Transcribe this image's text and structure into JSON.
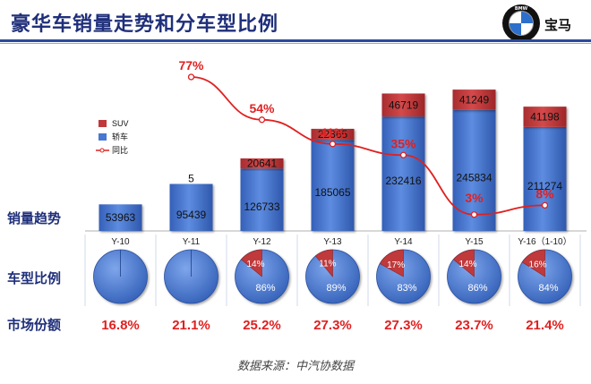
{
  "header": {
    "title": "豪华车销量走势和分车型比例",
    "brand_text": "宝马",
    "logo_text": "BMW"
  },
  "row_labels": {
    "sales_trend": "销量趋势",
    "model_ratio": "车型比例",
    "market_share": "市场份额"
  },
  "source": "数据来源：中汽协数据",
  "colors": {
    "sedan": "#4a77cf",
    "suv": "#c0393b",
    "yoy": "#e02020",
    "share_text": "#e02020",
    "title": "#1f2f7a"
  },
  "chart_data": [
    {
      "type": "bar",
      "stacked": true,
      "categories": [
        "Y-10",
        "Y-11",
        "Y-12",
        "Y-13",
        "Y-14",
        "Y-15",
        "Y-16（1-10）"
      ],
      "series": [
        {
          "name": "轿车",
          "values": [
            53963,
            95439,
            126733,
            185065,
            232416,
            245834,
            211274
          ]
        },
        {
          "name": "SUV",
          "values": [
            0,
            5,
            20641,
            22365,
            46719,
            41249,
            41198
          ]
        }
      ],
      "value_labels": {
        "sedan": [
          "53963",
          "95439",
          "126733",
          "185065",
          "232416",
          "245834",
          "211274"
        ],
        "suv": [
          "",
          "5",
          "20641",
          "22365",
          "46719",
          "41249",
          "41198"
        ]
      },
      "ylim": [
        0,
        300000
      ],
      "legend": {
        "placement": "left",
        "entries": [
          "SUV",
          "轿车",
          "同比"
        ]
      }
    },
    {
      "type": "line",
      "x": [
        "Y-11",
        "Y-12",
        "Y-13",
        "Y-14",
        "Y-15",
        "Y-16（1-10）"
      ],
      "series": [
        {
          "name": "同比",
          "values": [
            77,
            54,
            41,
            35,
            3,
            8
          ]
        }
      ],
      "labels": [
        "77%",
        "54%",
        "41%",
        "35%",
        "3%",
        "8%"
      ]
    },
    {
      "type": "pie",
      "categories": [
        "Y-10",
        "Y-11",
        "Y-12",
        "Y-13",
        "Y-14",
        "Y-15",
        "Y-16（1-10）"
      ],
      "suv_pct": [
        0,
        0,
        14,
        11,
        17,
        14,
        16
      ],
      "sedan_pct": [
        100,
        100,
        86,
        89,
        83,
        86,
        84
      ],
      "suv_labels": [
        "",
        "",
        "14%",
        "11%",
        "17%",
        "14%",
        "16%"
      ],
      "sedan_labels": [
        "",
        "",
        "86%",
        "89%",
        "83%",
        "86%",
        "84%"
      ]
    },
    {
      "type": "table",
      "categories": [
        "Y-10",
        "Y-11",
        "Y-12",
        "Y-13",
        "Y-14",
        "Y-15",
        "Y-16（1-10）"
      ],
      "values": [
        16.8,
        21.1,
        25.2,
        27.3,
        27.3,
        23.7,
        21.4
      ],
      "labels": [
        "16.8%",
        "21.1%",
        "25.2%",
        "27.3%",
        "27.3%",
        "23.7%",
        "21.4%"
      ]
    }
  ]
}
